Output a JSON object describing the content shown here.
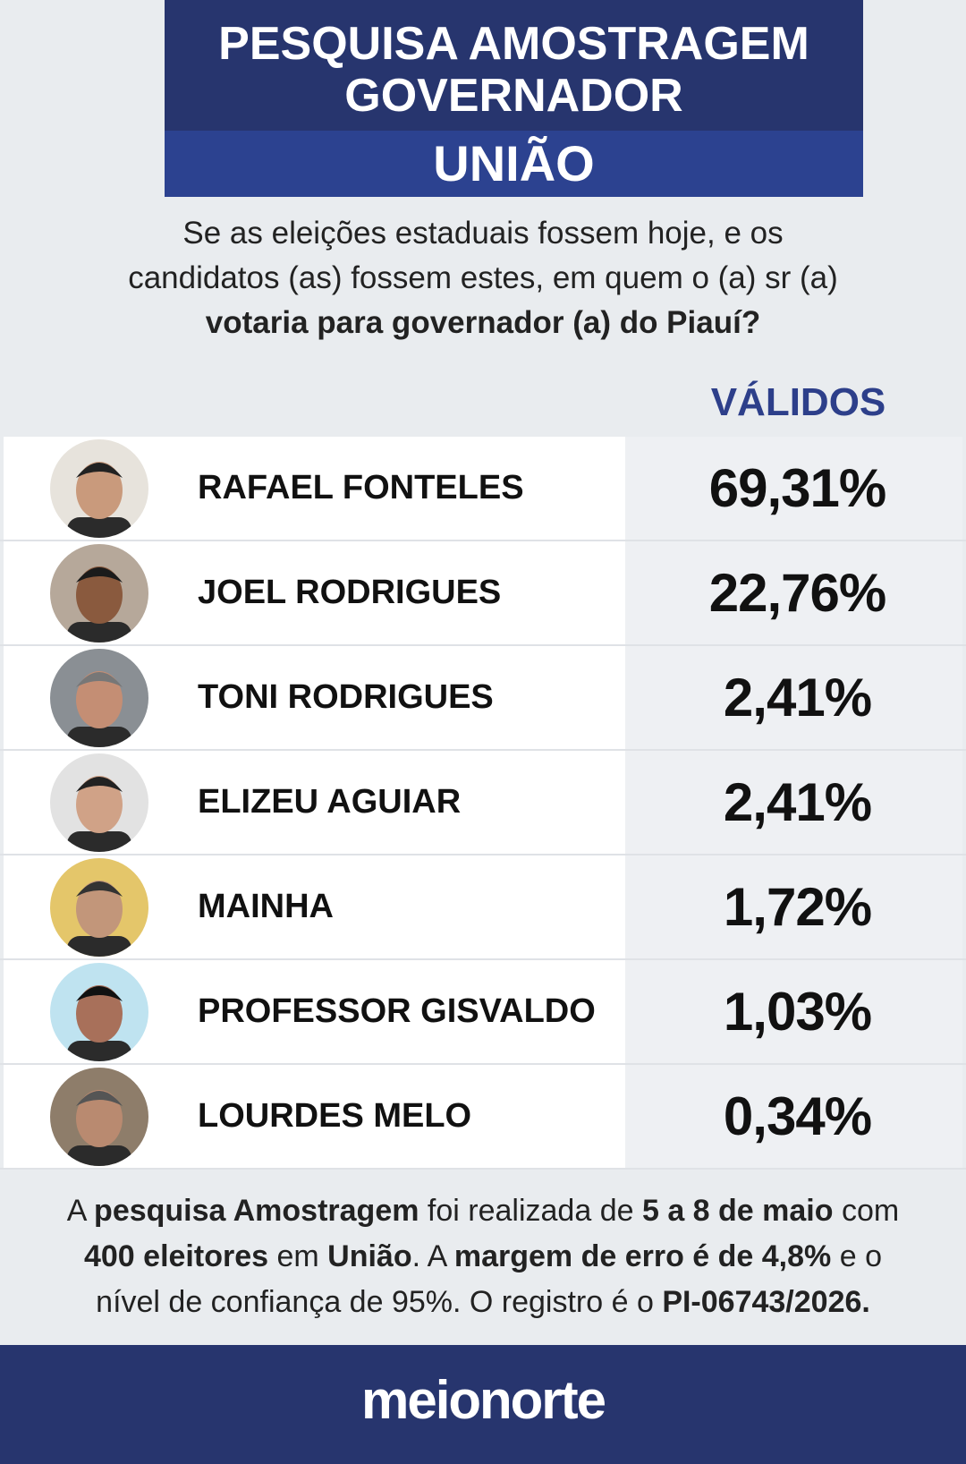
{
  "header": {
    "title": "PESQUISA AMOSTRAGEM GOVERNADOR",
    "city": "UNIÃO"
  },
  "question": {
    "segments": [
      "Se as eleições estaduais fossem hoje, e os candidatos (as) fossem estes, em quem o (a) sr (a) ",
      "votaria para governador (a) do Piauí?"
    ]
  },
  "table": {
    "column_header": "VÁLIDOS",
    "rows": [
      {
        "name": "RAFAEL FONTELES",
        "value": "69,31%"
      },
      {
        "name": "JOEL RODRIGUES",
        "value": "22,76%"
      },
      {
        "name": "TONI RODRIGUES",
        "value": "2,41%"
      },
      {
        "name": "ELIZEU AGUIAR",
        "value": "2,41%"
      },
      {
        "name": "MAINHA",
        "value": "1,72%"
      },
      {
        "name": "PROFESSOR GISVALDO",
        "value": "1,03%"
      },
      {
        "name": "LOURDES MELO",
        "value": "0,34%"
      }
    ]
  },
  "footer": {
    "segments": [
      "A ",
      "pesquisa Amostragem",
      " foi realizada de ",
      "5 a 8 de maio",
      " com ",
      "400 eleitores",
      " em ",
      "União",
      ". A ",
      "margem de erro é de 4,8%",
      " e o nível de confiança de 95%. O registro é o ",
      "PI-06743/2026."
    ]
  },
  "brand": {
    "logo": "meionorte"
  }
}
